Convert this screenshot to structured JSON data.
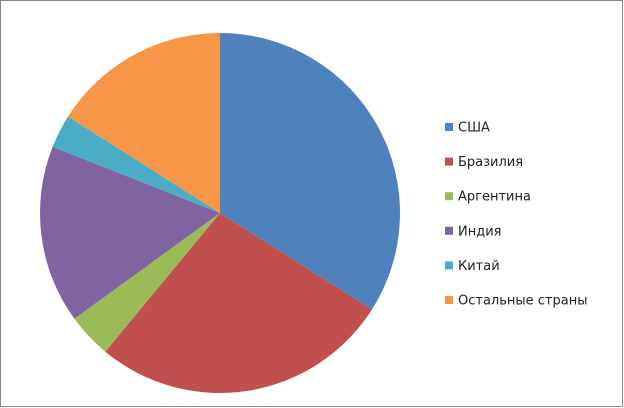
{
  "chart_data": {
    "type": "pie",
    "categories": [
      "США",
      "Бразилия",
      "Аргентина",
      "Индия",
      "Китай",
      "Остальные страны"
    ],
    "values": [
      34,
      27,
      4,
      16,
      3,
      16
    ],
    "colors": [
      "#4f81bd",
      "#c0504d",
      "#9bbb59",
      "#8064a2",
      "#4bacc6",
      "#f79646"
    ],
    "legend": "right"
  }
}
